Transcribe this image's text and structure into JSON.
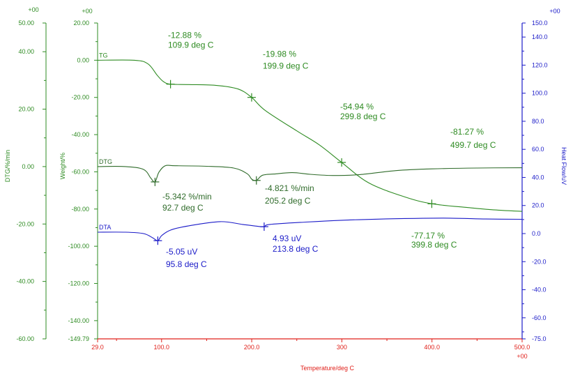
{
  "chart_data": {
    "type": "line",
    "colors": {
      "weight": "#2e8b22",
      "dtg": "#2f6b2a",
      "dta": "#1a1ac8",
      "heat": "#1a1ac8",
      "xaxis": "#e0201a",
      "grid_frame": "#2e8b22"
    },
    "x": {
      "label": "Temperature/deg C",
      "lim": [
        29.0,
        500.0
      ],
      "ticks": [
        29.0,
        100.0,
        200.0,
        300.0,
        400.0,
        500.0
      ],
      "tick_labels": [
        "29.0",
        "100.0",
        "200.0",
        "300",
        "400.0",
        "500.0"
      ],
      "top_marker": "+00"
    },
    "axes": {
      "dtg": {
        "label": "DTG/%/min",
        "lim": [
          -60,
          50
        ],
        "ticks": [
          50,
          40,
          20,
          0,
          -20,
          -40,
          -60
        ],
        "tick_labels": [
          "50.00",
          "40.00",
          "20.00",
          "0.00",
          "-20.00",
          "-40.00",
          "-60.00"
        ],
        "top_marker": "+00"
      },
      "weight": {
        "label": "Weight/%",
        "lim": [
          -149.79,
          20
        ],
        "ticks": [
          20,
          0,
          -20,
          -40,
          -60,
          -80,
          -100,
          -120,
          -140,
          -149.79
        ],
        "tick_labels": [
          "20.00",
          "0.00",
          "-20.00",
          "-40.00",
          "-60.00",
          "-80.00",
          "-100.00",
          "-120.00",
          "-140.00",
          "-149.79"
        ],
        "top_marker": "+00"
      },
      "heat": {
        "label": "Heat Flow/uV",
        "lim": [
          -75,
          150
        ],
        "ticks": [
          150,
          140,
          120,
          100,
          80,
          60,
          40,
          20,
          0,
          -20,
          -40,
          -60,
          -75
        ],
        "tick_labels": [
          "150.0",
          "140.0",
          "120.0",
          "100.0",
          "80.0",
          "60.0",
          "40.0",
          "20.0",
          "0.0",
          "-20.0",
          "-40.0",
          "-60.0",
          "-75.0"
        ],
        "top_marker": "+00"
      }
    },
    "series": [
      {
        "name": "TG",
        "axis": "weight",
        "x": [
          29,
          70,
          85,
          95,
          102,
          109.9,
          130,
          160,
          185,
          199.9,
          215,
          250,
          275,
          299.8,
          330,
          370,
          399.8,
          440,
          470,
          500
        ],
        "y": [
          0,
          0,
          -2,
          -8,
          -11.5,
          -12.88,
          -13.1,
          -13.5,
          -15.5,
          -19.98,
          -27,
          -38,
          -45.5,
          -54.94,
          -66,
          -73.5,
          -77.17,
          -79.2,
          -80.5,
          -81.27
        ]
      },
      {
        "name": "DTG",
        "axis": "dtg",
        "x": [
          29,
          60,
          80,
          88,
          92.7,
          97,
          104,
          115,
          150,
          180,
          195,
          200,
          205.2,
          212,
          225,
          245,
          265,
          290,
          320,
          360,
          400,
          450,
          500
        ],
        "y": [
          0,
          0,
          -1,
          -4,
          -5.342,
          -2,
          0.3,
          0.3,
          0.1,
          -0.5,
          -2.5,
          -4.4,
          -4.821,
          -3,
          -2.6,
          -2.1,
          -2.7,
          -3.1,
          -2.8,
          -1.4,
          -0.8,
          -0.5,
          -0.4
        ]
      },
      {
        "name": "DTA",
        "axis": "heat",
        "x": [
          29,
          60,
          80,
          90,
          95.8,
          100,
          110,
          130,
          165,
          190,
          205,
          213.8,
          220,
          260,
          300,
          340,
          380,
          420,
          460,
          500
        ],
        "y": [
          1,
          1,
          0,
          -3,
          -5.05,
          -1.5,
          2.5,
          5.5,
          8.5,
          6.5,
          5.3,
          4.93,
          6.5,
          8.2,
          9.5,
          10.3,
          10.8,
          11.0,
          10.4,
          10.2
        ]
      }
    ],
    "markers": [
      {
        "series": "TG",
        "x": 109.9,
        "y": -12.88,
        "labels": [
          "-12.88 %",
          "109.9 deg C"
        ]
      },
      {
        "series": "TG",
        "x": 199.9,
        "y": -19.98,
        "labels": [
          "-19.98 %",
          "199.9 deg C"
        ]
      },
      {
        "series": "TG",
        "x": 299.8,
        "y": -54.94,
        "labels": [
          "-54.94 %",
          "299.8 deg C"
        ]
      },
      {
        "series": "TG",
        "x": 399.8,
        "y": -77.17,
        "labels": [
          "-77.17 %",
          "399.8 deg C"
        ]
      },
      {
        "series": "TG",
        "x": null,
        "y": null,
        "labels": [
          "-81.27 %",
          "499.7 deg C"
        ]
      },
      {
        "series": "DTG",
        "x": 92.7,
        "y": -5.342,
        "labels": [
          "-5.342 %/min",
          "92.7 deg C"
        ]
      },
      {
        "series": "DTG",
        "x": 205.2,
        "y": -4.821,
        "labels": [
          "-4.821 %/min",
          "205.2 deg C"
        ]
      },
      {
        "series": "DTA",
        "x": 95.8,
        "y": -5.05,
        "labels": [
          "-5.05 uV",
          "95.8 deg C"
        ]
      },
      {
        "series": "DTA",
        "x": 213.8,
        "y": 4.93,
        "labels": [
          "4.93 uV",
          "213.8 deg C"
        ]
      }
    ],
    "grid": false
  }
}
